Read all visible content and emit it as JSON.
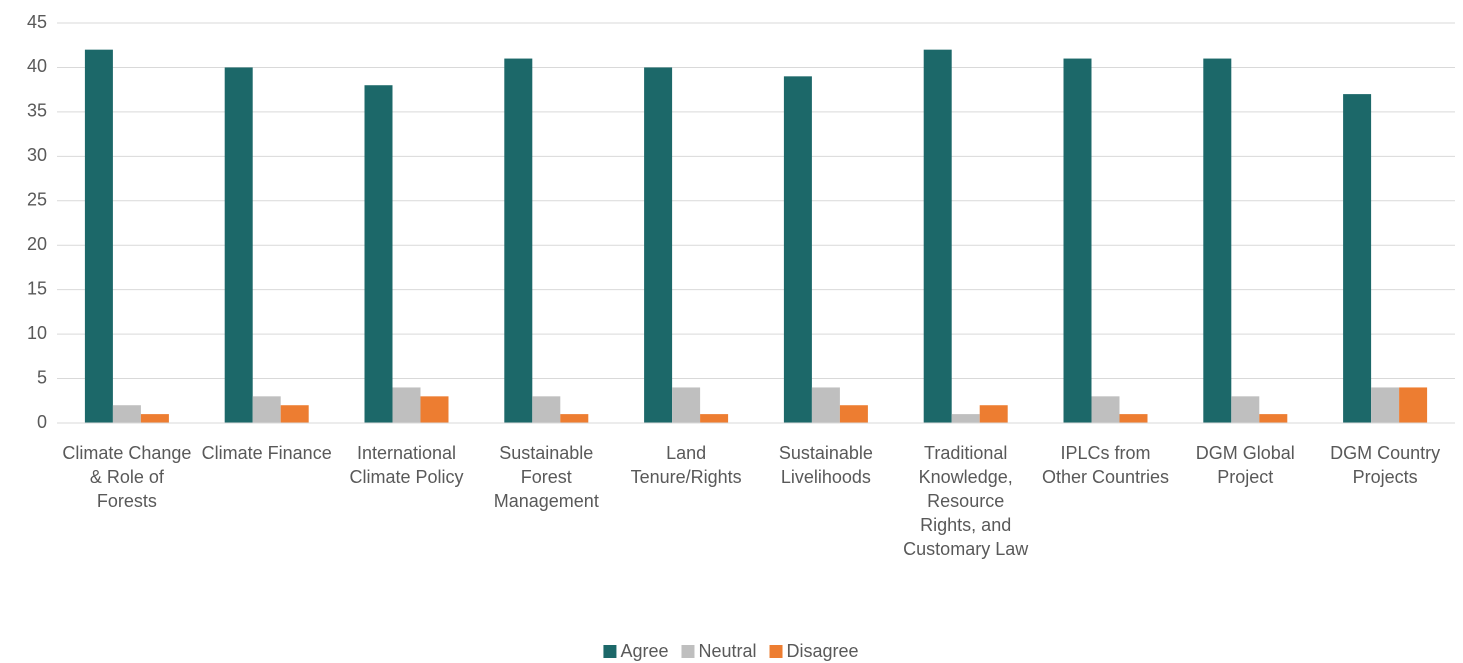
{
  "chart_data": {
    "type": "bar",
    "categories": [
      "Climate Change & Role of Forests",
      "Climate Finance",
      "International Climate Policy",
      "Sustainable Forest Management",
      "Land Tenure/Rights",
      "Sustainable Livelihoods",
      "Traditional Knowledge, Resource Rights, and Customary Law",
      "IPLCs from Other Countries",
      "DGM Global Project",
      "DGM Country Projects"
    ],
    "series": [
      {
        "name": "Agree",
        "color": "#1c6869",
        "values": [
          42,
          40,
          38,
          41,
          40,
          39,
          42,
          41,
          41,
          37
        ]
      },
      {
        "name": "Neutral",
        "color": "#bfbfbf",
        "values": [
          2,
          3,
          4,
          3,
          4,
          4,
          1,
          3,
          3,
          4
        ]
      },
      {
        "name": "Disagree",
        "color": "#ed7d31",
        "values": [
          1,
          2,
          3,
          1,
          1,
          2,
          2,
          1,
          1,
          4
        ]
      }
    ],
    "ylim": [
      0,
      45
    ],
    "yticks": [
      0,
      5,
      10,
      15,
      20,
      25,
      30,
      35,
      40,
      45
    ],
    "grid": true,
    "legend": "bottom"
  }
}
